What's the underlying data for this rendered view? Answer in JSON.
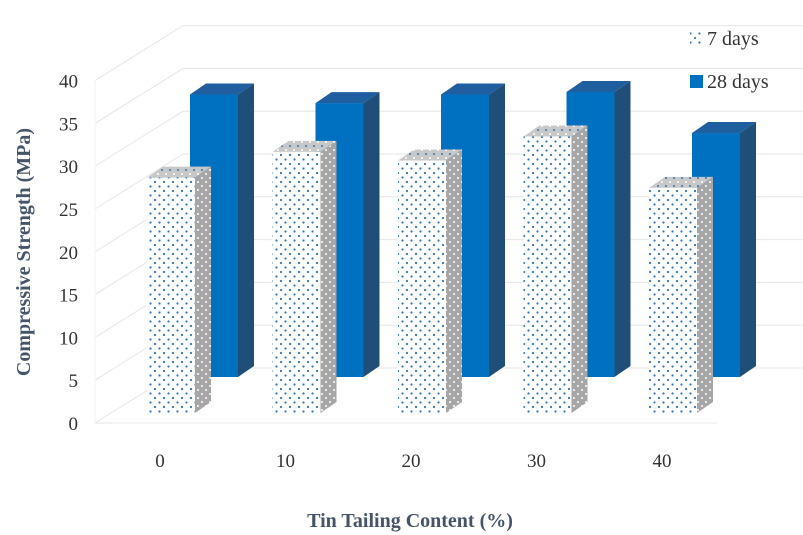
{
  "chart_data": {
    "type": "bar",
    "subtype": "3d-clustered-column",
    "title": "",
    "xlabel": "Tin Tailing Content (%)",
    "ylabel": "Compressive Strength (MPa)",
    "ylim": [
      0,
      40
    ],
    "yticks": [
      "0",
      "5",
      "10",
      "15",
      "20",
      "25",
      "30",
      "35",
      "40"
    ],
    "categories": [
      "0",
      "10",
      "20",
      "30",
      "40"
    ],
    "series": [
      {
        "name": "7 days",
        "values": [
          27.5,
          30.5,
          29.5,
          32.3,
          26.3
        ],
        "pattern": "dotted",
        "color": "#2e75b6"
      },
      {
        "name": "28 days",
        "values": [
          33.0,
          32.0,
          33.0,
          33.3,
          28.5
        ],
        "pattern": "solid",
        "color": "#0070c0"
      }
    ],
    "legend_position": "top-right",
    "grid": true
  }
}
